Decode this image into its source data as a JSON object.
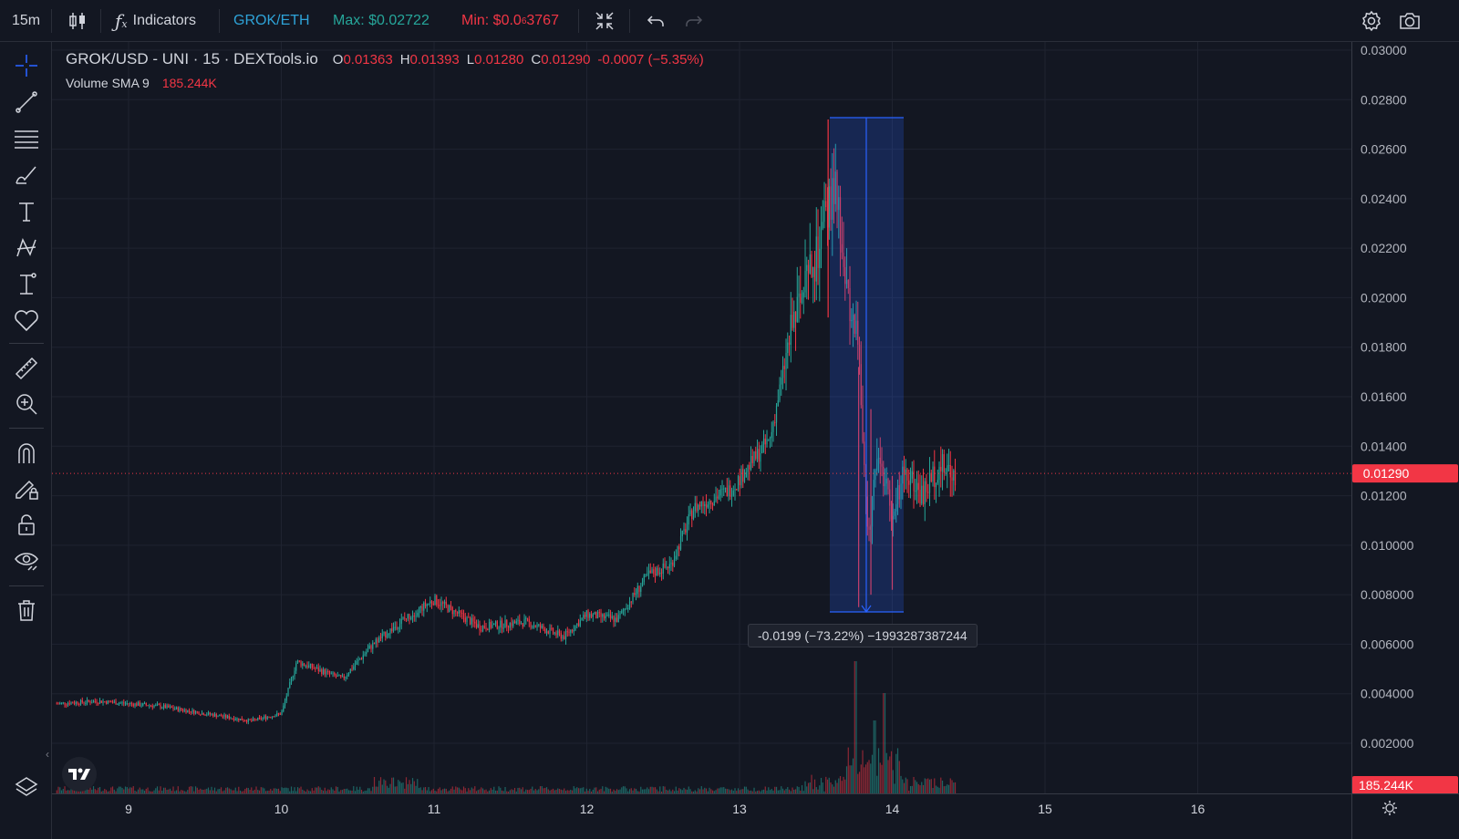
{
  "toolbar": {
    "interval": "15m",
    "indicators_label": "Indicators",
    "pair_label": "GROK/ETH",
    "max_label": "Max: $0.02722",
    "min_label_prefix": "Min: $0.0",
    "min_label_sub": "6",
    "min_label_suffix": "3767"
  },
  "legend": {
    "symbol": "GROK/USD - UNI · 15 · DEXTools.io",
    "open_key": "O",
    "open": "0.01363",
    "high_key": "H",
    "high": "0.01393",
    "low_key": "L",
    "low": "0.01280",
    "close_key": "C",
    "close": "0.01290",
    "change": "-0.0007 (−5.35%)",
    "volume_label": "Volume SMA 9",
    "volume_value": "185.244K"
  },
  "price_axis": {
    "ticks": [
      "0.03000",
      "0.02800",
      "0.02600",
      "0.02400",
      "0.02200",
      "0.02000",
      "0.01800",
      "0.01600",
      "0.01400",
      "0.01200",
      "0.010000",
      "0.008000",
      "0.006000",
      "0.004000",
      "0.002000"
    ],
    "current_price": "0.01290",
    "volume_badge": "185.244K"
  },
  "time_axis": {
    "ticks": [
      "9",
      "10",
      "11",
      "12",
      "13",
      "14",
      "15",
      "16"
    ]
  },
  "measure": {
    "label": "-0.0199 (−73.22%) −1993287387244"
  },
  "colors": {
    "up": "#26a69a",
    "down": "#f23645",
    "accent": "#2962ff",
    "background": "#131722",
    "grid": "#1f2330"
  },
  "icons": {
    "left": [
      "crosshair-icon",
      "trend-line-icon",
      "fib-lines-icon",
      "brush-icon",
      "text-icon",
      "pattern-icon",
      "measure-icon",
      "heart-icon",
      "ruler-icon",
      "zoom-in-icon",
      "magnet-icon",
      "pencil-lock-icon",
      "lock-icon",
      "eye-icon",
      "trash-icon",
      "layers-icon"
    ],
    "top_right": [
      "gear-icon",
      "camera-icon"
    ]
  }
}
